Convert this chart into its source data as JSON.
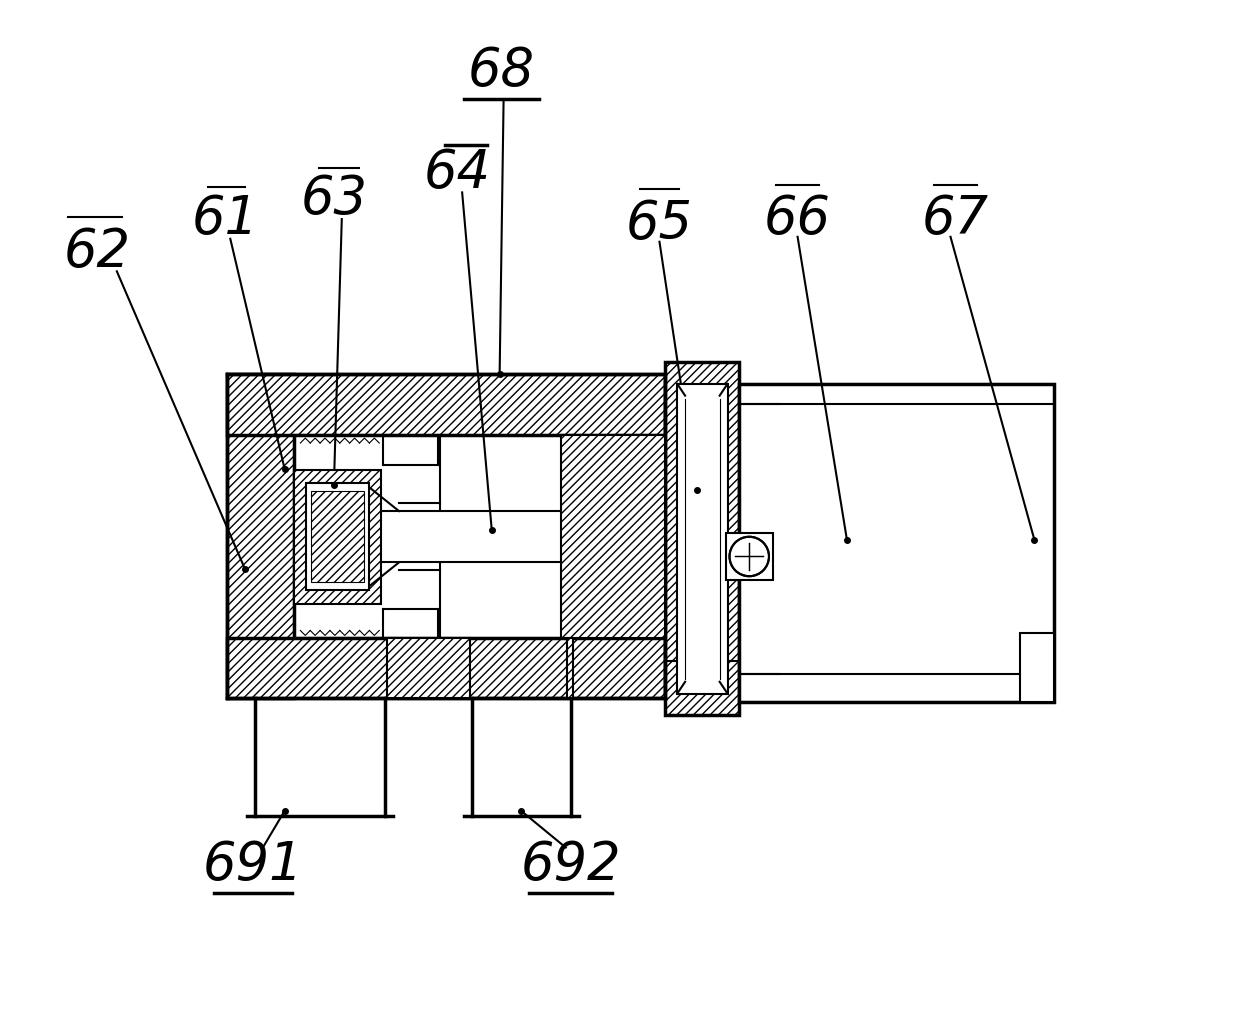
{
  "bg_color": "#ffffff",
  "line_color": "#000000",
  "figsize": [
    12.4,
    10.36
  ],
  "dpi": 100,
  "label_fontsize": 38,
  "label_style": "italic"
}
